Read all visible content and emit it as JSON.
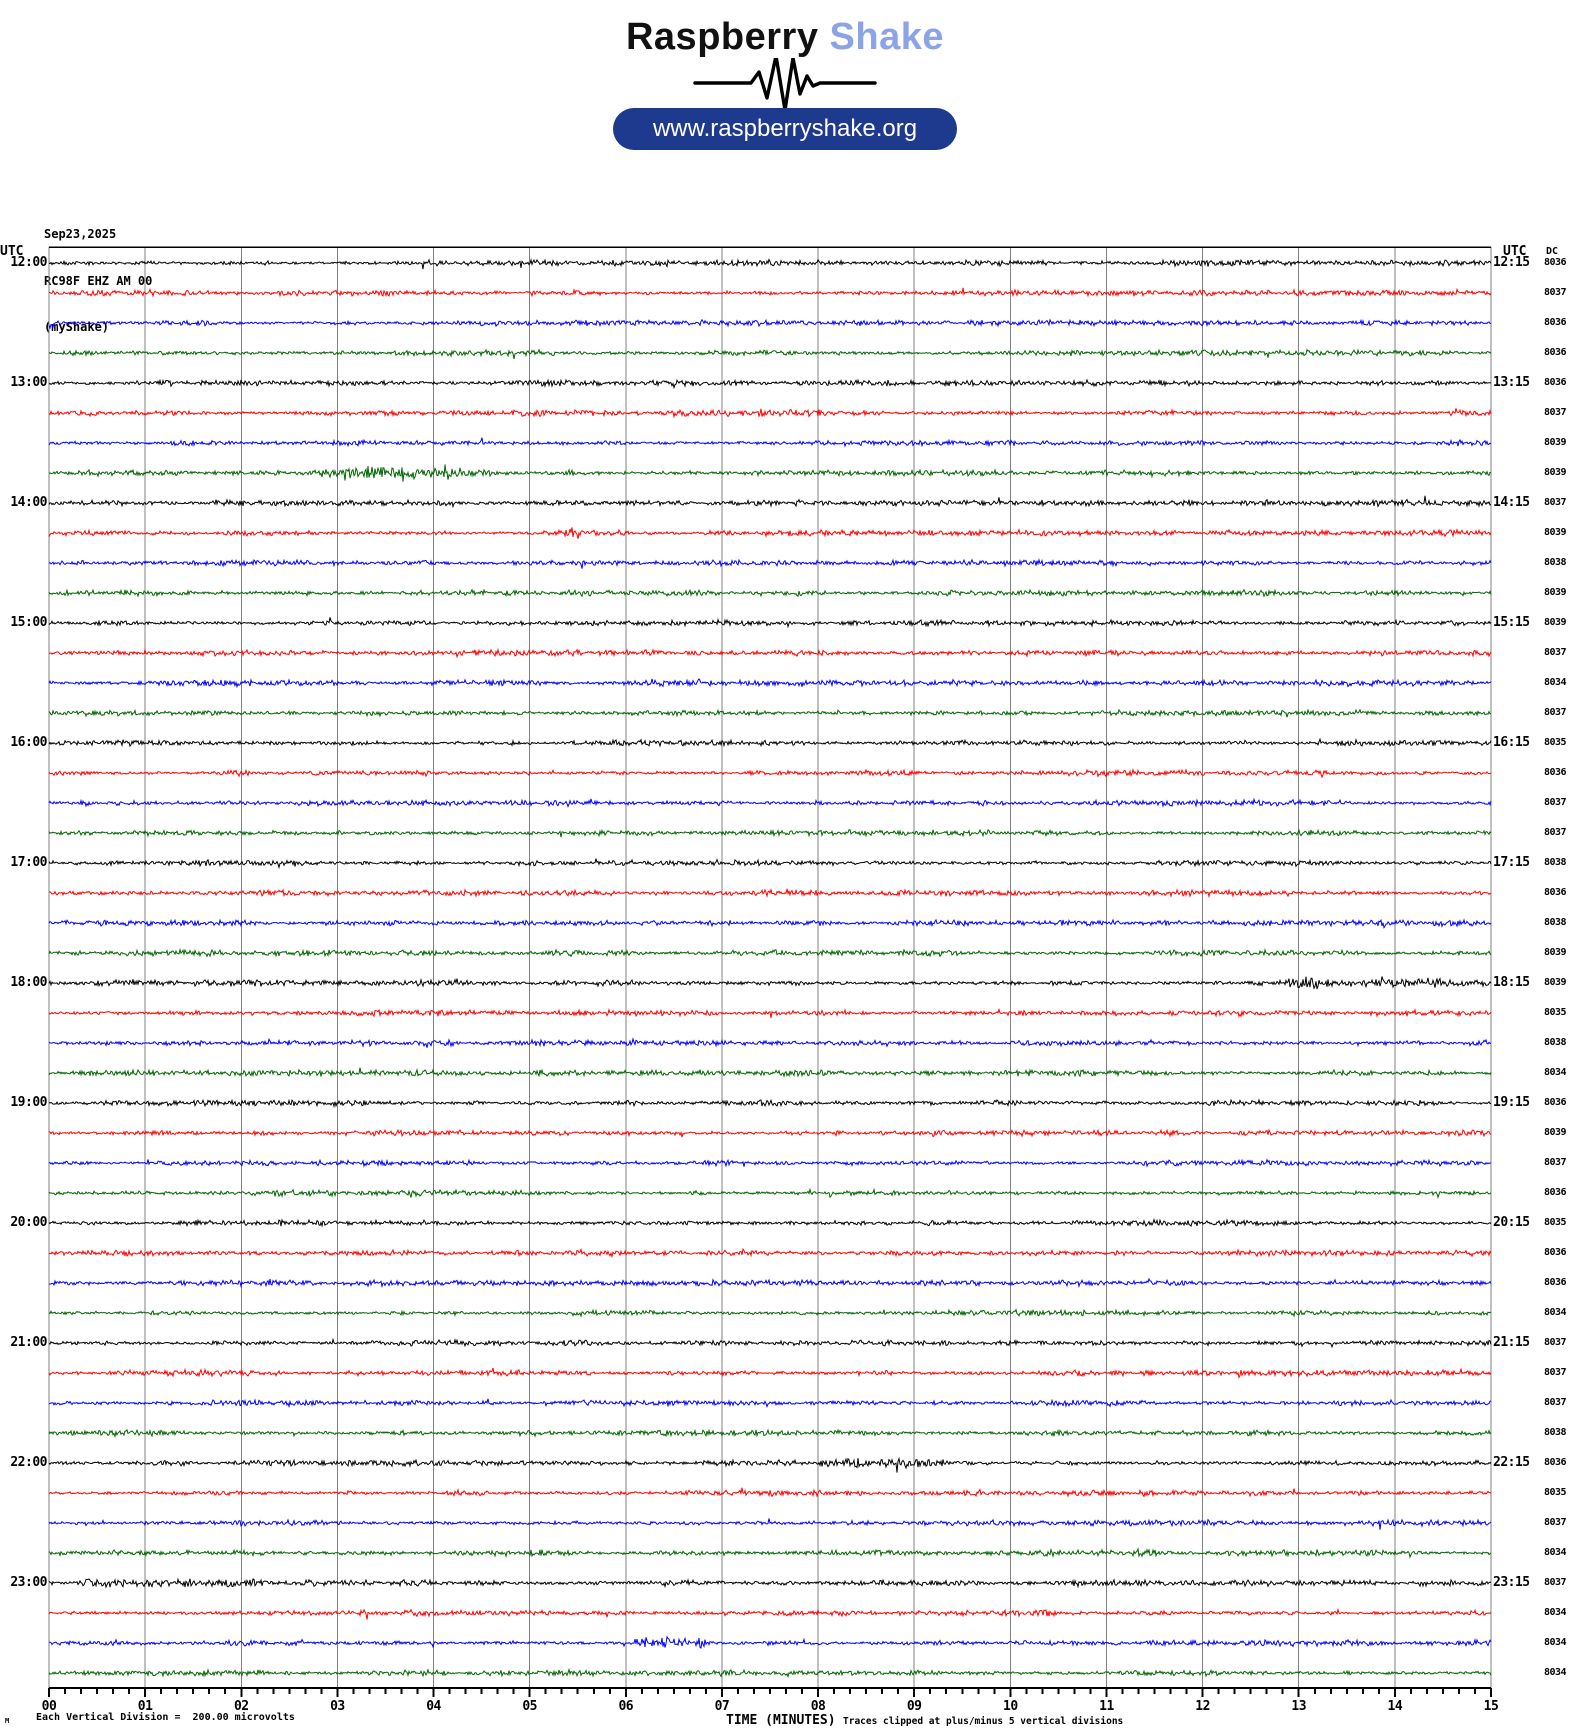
{
  "header": {
    "logo_primary": "Raspberry",
    "logo_secondary": "Shake",
    "logo_icon": "seismic-waveform-icon",
    "website": "www.raspberryshake.org"
  },
  "station": {
    "date": "Sep23,2025",
    "id": "RC98F EHZ AM 00",
    "name": "(myShake)"
  },
  "plot": {
    "left_axis_header": "UTC",
    "right_axis_header": "UTC",
    "dc_header": "DC",
    "x_axis": {
      "title": "TIME (MINUTES)",
      "tick_labels": [
        "00",
        "01",
        "02",
        "03",
        "04",
        "05",
        "06",
        "07",
        "08",
        "09",
        "10",
        "11",
        "12",
        "13",
        "14",
        "15"
      ],
      "minutes_total": 15,
      "minor_tick_interval_seconds": 10
    },
    "footer": {
      "scale_prefix": "M",
      "scale_note": "Each Vertical Division =  200.00 microvolts",
      "clip_note": "Traces clipped at plus/minus 5 vertical divisions"
    },
    "colors": {
      "trace_cycle": {
        "black": "#000000",
        "red": "#ff0000",
        "blue": "#0000ff",
        "green": "#006600"
      },
      "grid": "#808080",
      "border": "#000000",
      "pill": "#1e3a8f",
      "logo_accent": "#8ca3e8"
    }
  },
  "chart_data": {
    "type": "line",
    "title": "RC98F EHZ AM 00 (myShake) helicorder — Sep23,2025",
    "xlabel": "TIME (MINUTES)",
    "x_range": [
      0,
      15
    ],
    "x_ticks": [
      "00",
      "01",
      "02",
      "03",
      "04",
      "05",
      "06",
      "07",
      "08",
      "09",
      "10",
      "11",
      "12",
      "13",
      "14",
      "15"
    ],
    "row_duration_minutes": 15,
    "vertical_division_microvolts": 200.0,
    "clip_divisions": 5,
    "amplitude_note": "Each 15-minute row is ambient seismic noise of roughly ±0.5 vertical division with occasional small bursts; rows cycle black/red/blue/green.",
    "rows": [
      {
        "utc": "12:00",
        "end": "12:15",
        "color": "black",
        "dc": 8036,
        "label_left": "12:00",
        "label_right": "12:15"
      },
      {
        "utc": "12:15",
        "end": "12:30",
        "color": "red",
        "dc": 8037
      },
      {
        "utc": "12:30",
        "end": "12:45",
        "color": "blue",
        "dc": 8036
      },
      {
        "utc": "12:45",
        "end": "13:00",
        "color": "green",
        "dc": 8036
      },
      {
        "utc": "13:00",
        "end": "13:15",
        "color": "black",
        "dc": 8036,
        "label_left": "13:00",
        "label_right": "13:15"
      },
      {
        "utc": "13:15",
        "end": "13:30",
        "color": "red",
        "dc": 8037
      },
      {
        "utc": "13:30",
        "end": "13:45",
        "color": "blue",
        "dc": 8039
      },
      {
        "utc": "13:45",
        "end": "14:00",
        "color": "green",
        "dc": 8039
      },
      {
        "utc": "14:00",
        "end": "14:15",
        "color": "black",
        "dc": 8037,
        "label_left": "14:00",
        "label_right": "14:15"
      },
      {
        "utc": "14:15",
        "end": "14:30",
        "color": "red",
        "dc": 8039
      },
      {
        "utc": "14:30",
        "end": "14:45",
        "color": "blue",
        "dc": 8038
      },
      {
        "utc": "14:45",
        "end": "15:00",
        "color": "green",
        "dc": 8039
      },
      {
        "utc": "15:00",
        "end": "15:15",
        "color": "black",
        "dc": 8039,
        "label_left": "15:00",
        "label_right": "15:15"
      },
      {
        "utc": "15:15",
        "end": "15:30",
        "color": "red",
        "dc": 8037
      },
      {
        "utc": "15:30",
        "end": "15:45",
        "color": "blue",
        "dc": 8034
      },
      {
        "utc": "15:45",
        "end": "16:00",
        "color": "green",
        "dc": 8037
      },
      {
        "utc": "16:00",
        "end": "16:15",
        "color": "black",
        "dc": 8035,
        "label_left": "16:00",
        "label_right": "16:15"
      },
      {
        "utc": "16:15",
        "end": "16:30",
        "color": "red",
        "dc": 8036
      },
      {
        "utc": "16:30",
        "end": "16:45",
        "color": "blue",
        "dc": 8037
      },
      {
        "utc": "16:45",
        "end": "17:00",
        "color": "green",
        "dc": 8037
      },
      {
        "utc": "17:00",
        "end": "17:15",
        "color": "black",
        "dc": 8038,
        "label_left": "17:00",
        "label_right": "17:15"
      },
      {
        "utc": "17:15",
        "end": "17:30",
        "color": "red",
        "dc": 8036
      },
      {
        "utc": "17:30",
        "end": "17:45",
        "color": "blue",
        "dc": 8038
      },
      {
        "utc": "17:45",
        "end": "18:00",
        "color": "green",
        "dc": 8039
      },
      {
        "utc": "18:00",
        "end": "18:15",
        "color": "black",
        "dc": 8039,
        "label_left": "18:00",
        "label_right": "18:15"
      },
      {
        "utc": "18:15",
        "end": "18:30",
        "color": "red",
        "dc": 8035
      },
      {
        "utc": "18:30",
        "end": "18:45",
        "color": "blue",
        "dc": 8038
      },
      {
        "utc": "18:45",
        "end": "19:00",
        "color": "green",
        "dc": 8034
      },
      {
        "utc": "19:00",
        "end": "19:15",
        "color": "black",
        "dc": 8036,
        "label_left": "19:00",
        "label_right": "19:15"
      },
      {
        "utc": "19:15",
        "end": "19:30",
        "color": "red",
        "dc": 8039
      },
      {
        "utc": "19:30",
        "end": "19:45",
        "color": "blue",
        "dc": 8037
      },
      {
        "utc": "19:45",
        "end": "20:00",
        "color": "green",
        "dc": 8036
      },
      {
        "utc": "20:00",
        "end": "20:15",
        "color": "black",
        "dc": 8035,
        "label_left": "20:00",
        "label_right": "20:15"
      },
      {
        "utc": "20:15",
        "end": "20:30",
        "color": "red",
        "dc": 8036
      },
      {
        "utc": "20:30",
        "end": "20:45",
        "color": "blue",
        "dc": 8036
      },
      {
        "utc": "20:45",
        "end": "21:00",
        "color": "green",
        "dc": 8034
      },
      {
        "utc": "21:00",
        "end": "21:15",
        "color": "black",
        "dc": 8037,
        "label_left": "21:00",
        "label_right": "21:15"
      },
      {
        "utc": "21:15",
        "end": "21:30",
        "color": "red",
        "dc": 8037
      },
      {
        "utc": "21:30",
        "end": "21:45",
        "color": "blue",
        "dc": 8037
      },
      {
        "utc": "21:45",
        "end": "22:00",
        "color": "green",
        "dc": 8038
      },
      {
        "utc": "22:00",
        "end": "22:15",
        "color": "black",
        "dc": 8036,
        "label_left": "22:00",
        "label_right": "22:15"
      },
      {
        "utc": "22:15",
        "end": "22:30",
        "color": "red",
        "dc": 8035
      },
      {
        "utc": "22:30",
        "end": "22:45",
        "color": "blue",
        "dc": 8037
      },
      {
        "utc": "22:45",
        "end": "23:00",
        "color": "green",
        "dc": 8034
      },
      {
        "utc": "23:00",
        "end": "23:15",
        "color": "black",
        "dc": 8037,
        "label_left": "23:00",
        "label_right": "23:15"
      },
      {
        "utc": "23:15",
        "end": "23:30",
        "color": "red",
        "dc": 8034
      },
      {
        "utc": "23:30",
        "end": "23:45",
        "color": "blue",
        "dc": 8034
      },
      {
        "utc": "23:45",
        "end": "24:00",
        "color": "green",
        "dc": 8034
      }
    ],
    "events": [
      {
        "row": 7,
        "utc_row": "13:45",
        "minutes": [
          2.8,
          4.7
        ],
        "relative_amplitude": 2.6
      },
      {
        "row": 5,
        "utc_row": "13:15",
        "minutes": [
          6.3,
          8.1
        ],
        "relative_amplitude": 1.7
      },
      {
        "row": 9,
        "utc_row": "14:15",
        "minutes": [
          5.35,
          5.6
        ],
        "relative_amplitude": 3.2
      },
      {
        "row": 14,
        "utc_row": "15:30",
        "minutes": [
          5.7,
          6.9
        ],
        "relative_amplitude": 1.9
      },
      {
        "row": 24,
        "utc_row": "18:00",
        "minutes": [
          12.8,
          14.6
        ],
        "relative_amplitude": 1.8
      },
      {
        "row": 40,
        "utc_row": "22:00",
        "minutes": [
          7.9,
          9.4
        ],
        "relative_amplitude": 1.6
      },
      {
        "row": 43,
        "utc_row": "22:45",
        "minutes": [
          11.2,
          11.7
        ],
        "relative_amplitude": 2.1
      },
      {
        "row": 44,
        "utc_row": "23:00",
        "minutes": [
          0.2,
          2.3
        ],
        "relative_amplitude": 1.4
      },
      {
        "row": 46,
        "utc_row": "23:30",
        "minutes": [
          6.0,
          6.9
        ],
        "relative_amplitude": 2.8
      }
    ]
  }
}
